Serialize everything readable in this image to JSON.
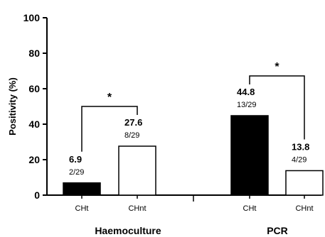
{
  "chart_data": {
    "type": "bar",
    "ylabel": "Positivity (%)",
    "ylim": [
      0,
      100
    ],
    "yticks": [
      0,
      20,
      40,
      60,
      80,
      100
    ],
    "grid": false,
    "groups": [
      {
        "label": "Haemoculture",
        "bars": [
          {
            "category": "CHt",
            "value": 6.9,
            "value_label": "6.9",
            "count_label": "2/29",
            "fill": "#000000"
          },
          {
            "category": "CHnt",
            "value": 27.6,
            "value_label": "27.6",
            "count_label": "8/29",
            "fill": "#ffffff"
          }
        ],
        "significance": "*"
      },
      {
        "label": "PCR",
        "bars": [
          {
            "category": "CHt",
            "value": 44.8,
            "value_label": "44.8",
            "count_label": "13/29",
            "fill": "#000000"
          },
          {
            "category": "CHnt",
            "value": 13.8,
            "value_label": "13.8",
            "count_label": "4/29",
            "fill": "#ffffff"
          }
        ],
        "significance": "*"
      }
    ]
  }
}
